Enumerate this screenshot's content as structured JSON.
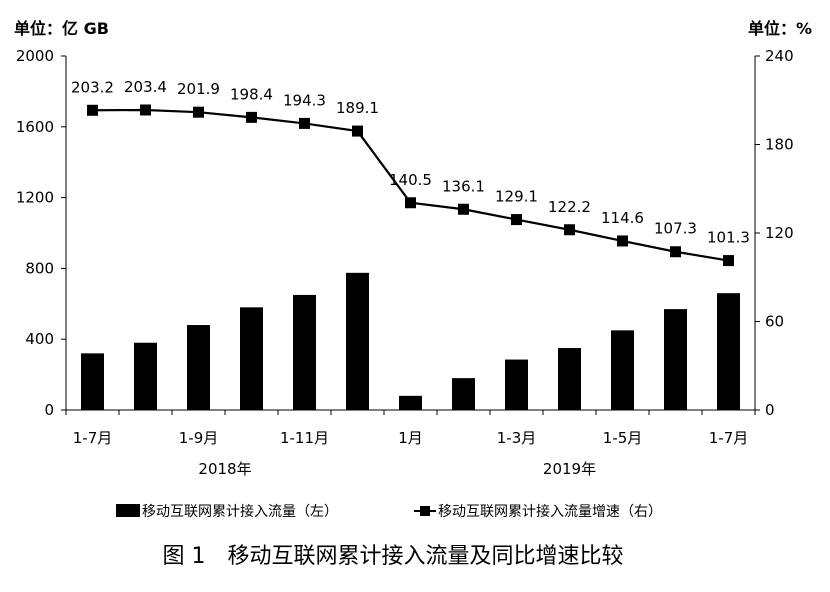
{
  "chart_data": {
    "type": "bar",
    "categories": [
      "1-7月",
      "",
      "1-9月",
      "",
      "1-11月",
      "",
      "1月",
      "",
      "1-3月",
      "",
      "1-5月",
      "",
      "1-7月"
    ],
    "x_periods": [
      "2018-07",
      "2018-08",
      "2018-09",
      "2018-10",
      "2018-11",
      "2018-12",
      "2019-01",
      "2019-02",
      "2019-03",
      "2019-04",
      "2019-05",
      "2019-06",
      "2019-07"
    ],
    "group_labels": [
      "2018年",
      "2019年"
    ],
    "group_sizes": [
      6,
      7
    ],
    "series": [
      {
        "name": "移动互联网累计接入流量（左）",
        "type": "bar",
        "axis": "left",
        "color": "#000000",
        "values": [
          320,
          380,
          480,
          580,
          650,
          775,
          80,
          180,
          285,
          350,
          450,
          570,
          660
        ]
      },
      {
        "name": "移动互联网累计接入流量增速（右）",
        "type": "line",
        "axis": "right",
        "color": "#000000",
        "marker": "square",
        "values": [
          203.2,
          203.4,
          201.9,
          198.4,
          194.3,
          189.1,
          140.5,
          136.1,
          129.1,
          122.2,
          114.6,
          107.3,
          101.3
        ]
      }
    ],
    "left_axis": {
      "unit_label": "单位：亿 GB",
      "ylim": [
        0,
        2000
      ],
      "ticks": [
        0,
        400,
        800,
        1200,
        1600,
        2000
      ]
    },
    "right_axis": {
      "unit_label": "单位：%",
      "ylim": [
        0,
        240
      ],
      "ticks": [
        0,
        60,
        120,
        180,
        240
      ]
    },
    "legend": [
      "移动互联网累计接入流量（左）",
      "移动互联网累计接入流量增速（右）"
    ],
    "legend_position": "bottom",
    "grid": false
  },
  "caption": "图 1　移动互联网累计接入流量及同比增速比较"
}
